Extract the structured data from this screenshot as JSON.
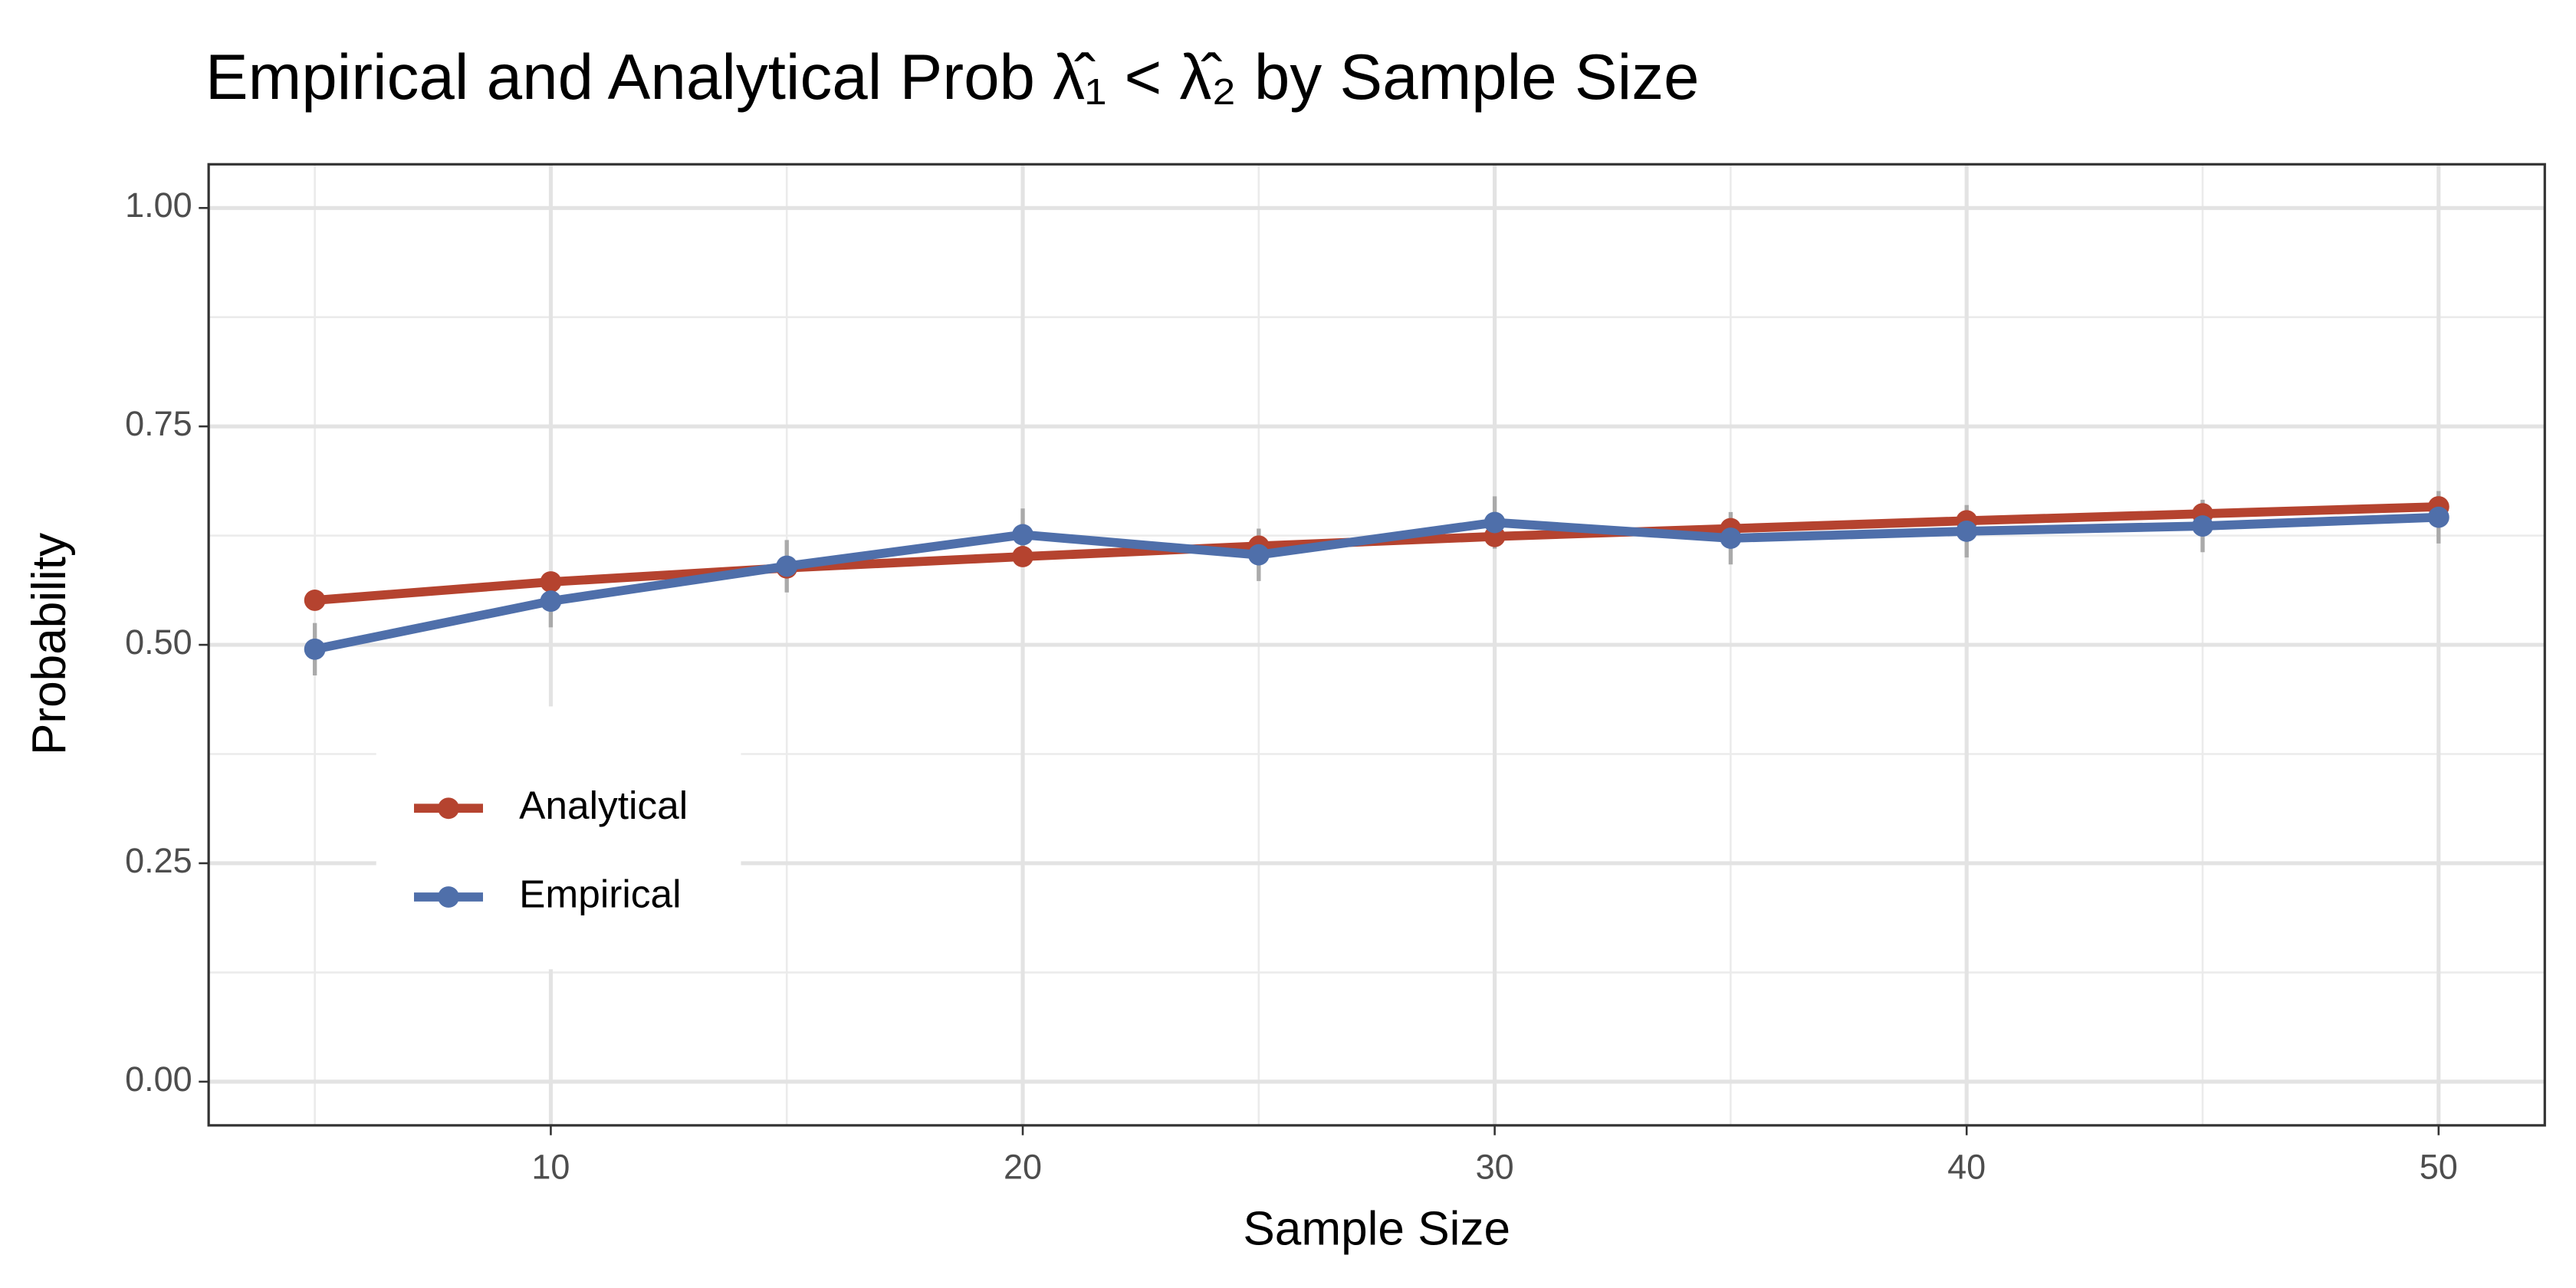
{
  "chart_data": {
    "type": "line",
    "title": "Empirical and Analytical Prob λ̂₁ < λ̂₂ by Sample Size",
    "x_label": "Sample Size",
    "y_label": "Probability",
    "x": [
      5,
      10,
      15,
      20,
      25,
      30,
      35,
      40,
      45,
      50
    ],
    "series": [
      {
        "name": "Analytical",
        "color": "#b5432f",
        "values": [
          0.551,
          0.572,
          0.588,
          0.601,
          0.613,
          0.624,
          0.633,
          0.642,
          0.65,
          0.658
        ]
      },
      {
        "name": "Empirical",
        "color": "#4f6faa",
        "values": [
          0.495,
          0.55,
          0.59,
          0.626,
          0.603,
          0.64,
          0.622,
          0.63,
          0.636,
          0.646
        ],
        "errors": [
          0.03,
          0.03,
          0.03,
          0.03,
          0.03,
          0.03,
          0.03,
          0.03,
          0.03,
          0.03
        ],
        "error_color": "#aaaaaa"
      }
    ],
    "xlim": [
      2.75,
      52.25
    ],
    "xticks": [
      10,
      20,
      30,
      40,
      50
    ],
    "ylim": [
      -0.05,
      1.05
    ],
    "yticks": [
      {
        "value": 0,
        "label": "0.00"
      },
      {
        "value": 0.25,
        "label": "0.25"
      },
      {
        "value": 0.5,
        "label": "0.50"
      },
      {
        "value": 0.75,
        "label": "0.75"
      },
      {
        "value": 1,
        "label": "1.00"
      }
    ],
    "x_minor_grid": [
      5,
      15,
      25,
      35,
      45
    ],
    "y_minor_grid": [
      0.125,
      0.375,
      0.625,
      0.875
    ],
    "grid": true,
    "legend": "left"
  }
}
